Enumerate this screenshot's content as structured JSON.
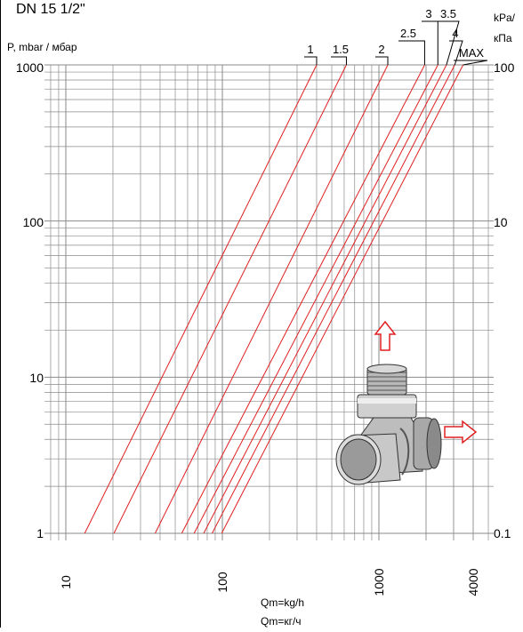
{
  "chart_data": {
    "type": "line",
    "title": "DN 15 1/2\"",
    "ylabel": "P, mbar / мбар",
    "ylabel_right_line1": "kPa/",
    "ylabel_right_line2": "кПа",
    "xlabel_line1": "Qm=kg/h",
    "xlabel_line2": "Qm=кг/ч",
    "x_scale": "log",
    "y_scale": "log",
    "xlim": [
      6,
      4500
    ],
    "ylim": [
      1,
      1000
    ],
    "grid": true,
    "x_ticks": [
      "10",
      "100",
      "1000",
      "4000"
    ],
    "y_ticks": [
      "1",
      "10",
      "100",
      "1000"
    ],
    "y_ticks_right": [
      "0.1",
      "10",
      "100"
    ],
    "series": [
      {
        "name": "1",
        "x": [
          13.2,
          400
        ],
        "y": [
          1,
          1000
        ]
      },
      {
        "name": "1.5",
        "x": [
          20.3,
          620
        ],
        "y": [
          1,
          1000
        ]
      },
      {
        "name": "2",
        "x": [
          37.2,
          1140
        ],
        "y": [
          1,
          1000
        ]
      },
      {
        "name": "2.5",
        "x": [
          55,
          1960
        ],
        "y": [
          1,
          1000
        ]
      },
      {
        "name": "3",
        "x": [
          66,
          2380
        ],
        "y": [
          1,
          1000
        ]
      },
      {
        "name": "3.5",
        "x": [
          76,
          2700
        ],
        "y": [
          1,
          1000
        ]
      },
      {
        "name": "4",
        "x": [
          86,
          3050
        ],
        "y": [
          1,
          1000
        ]
      },
      {
        "name": "MAX",
        "x": [
          99,
          3450
        ],
        "y": [
          1,
          1000
        ]
      }
    ],
    "line_color": "#e02020",
    "grid_color": "#8a8a8a"
  }
}
